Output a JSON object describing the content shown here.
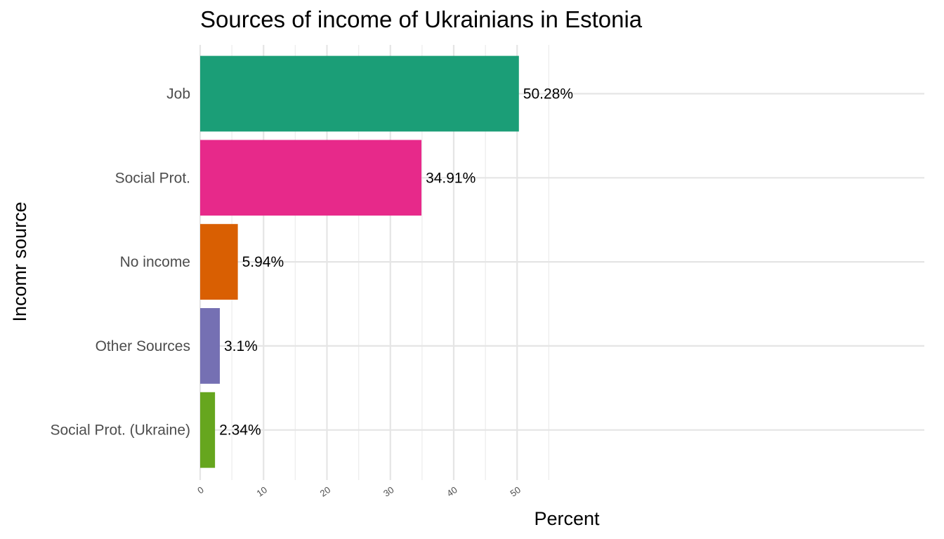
{
  "chart_data": {
    "type": "bar",
    "orientation": "horizontal",
    "title": "Sources of income of Ukrainians in Estonia",
    "xlabel": "Percent",
    "ylabel": "Incomr source",
    "categories": [
      "Job",
      "Social Prot.",
      "No income",
      "Other Sources",
      "Social Prot. (Ukraine)"
    ],
    "values": [
      50.28,
      34.91,
      5.94,
      3.1,
      2.34
    ],
    "data_labels": [
      "50.28%",
      "34.91%",
      "5.94%",
      "3.1%",
      "2.34%"
    ],
    "colors": [
      "#1b9e77",
      "#e7298a",
      "#d95f02",
      "#7570b3",
      "#66a61e"
    ],
    "xlim": [
      0,
      55
    ],
    "xticks": [
      0,
      10,
      20,
      30,
      40,
      50
    ],
    "xtick_labels": [
      "0",
      "10",
      "20",
      "30",
      "40",
      "50"
    ],
    "grid": true,
    "legend": "none"
  }
}
